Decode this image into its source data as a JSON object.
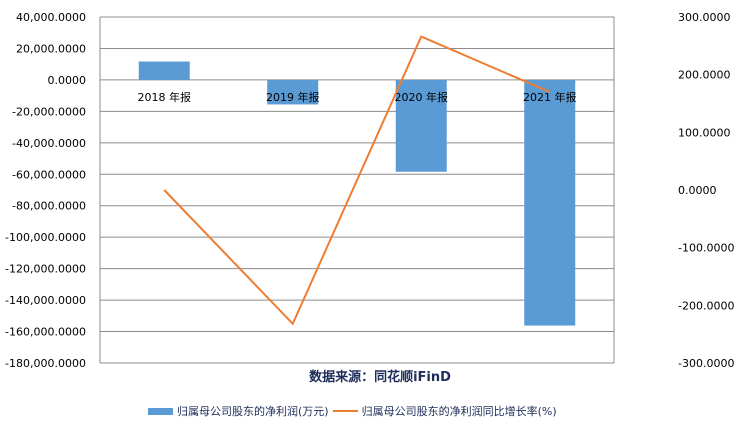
{
  "chart_data": {
    "type": "bar+line",
    "categories": [
      "2018 年报",
      "2019 年报",
      "2020 年报",
      "2021 年报"
    ],
    "series": [
      {
        "name": "归属母公司股东的净利润(万元)",
        "type": "bar",
        "axis": "left",
        "color": "#5b9bd5",
        "values": [
          11700,
          -15600,
          -58400,
          -156200
        ]
      },
      {
        "name": "归属母公司股东的净利润同比增长率(%)",
        "type": "line",
        "axis": "right",
        "color": "#ed7d31",
        "values": [
          0,
          -232,
          266,
          170
        ]
      }
    ],
    "left_axis": {
      "range": [
        -180000,
        40000
      ],
      "step": 20000,
      "tick_labels": [
        "40,000.0000",
        "20,000.0000",
        "0.0000",
        "-20,000.0000",
        "-40,000.0000",
        "-60,000.0000",
        "-80,000.0000",
        "-100,000.0000",
        "-120,000.0000",
        "-140,000.0000",
        "-160,000.0000",
        "-180,000.0000"
      ]
    },
    "right_axis": {
      "range": [
        -300,
        300
      ],
      "step": 100,
      "tick_labels": [
        "300.0000",
        "200.0000",
        "100.0000",
        "0.0000",
        "-100.0000",
        "-200.0000",
        "-300.0000"
      ]
    },
    "grid": true,
    "legend_position": "bottom",
    "source": "数据来源：同花顺iFinD"
  }
}
